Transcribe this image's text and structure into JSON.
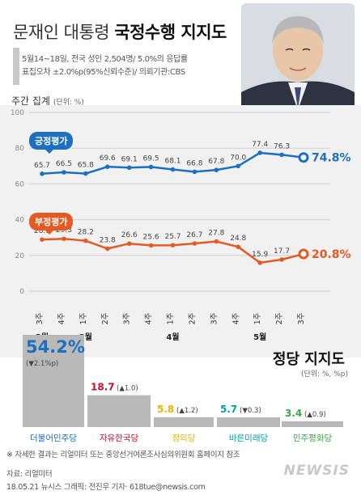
{
  "header": {
    "title_normal": "문재인 대통령 ",
    "title_bold": "국정수행 지지도",
    "subtitle_lines": [
      "5월14~18일, 전국 성인 2,504명/ 5.0%의 응답률",
      "표집오차 ±2.0%p(95%신뢰수준)/ 의뢰기관:CBS"
    ]
  },
  "chart_section": {
    "label": "주간 집계",
    "unit": "(단위: %)"
  },
  "colors": {
    "positive": "#1d6fbf",
    "negative": "#e45a23",
    "bar_gray": "#b9b9b9",
    "red": "#c8102e",
    "yellow": "#e8b400",
    "cyan": "#00a0b0",
    "green": "#3aa845"
  },
  "chart_data": [
    {
      "type": "line",
      "title": "문재인 대통령 국정수행 지지도",
      "ylabel": "(단위: %)",
      "ylim": [
        0,
        100
      ],
      "yticks": [
        "0",
        "20",
        "40",
        "60",
        "80",
        "100"
      ],
      "categories": [
        "3주",
        "4주",
        "1주",
        "2주",
        "3주",
        "4주",
        "1주",
        "2주",
        "3주",
        "4주",
        "1주",
        "2주",
        "3주"
      ],
      "month_labels": [
        {
          "index": 0,
          "label": "2월"
        },
        {
          "index": 2,
          "label": "3월"
        },
        {
          "index": 6,
          "label": "4월"
        },
        {
          "index": 10,
          "label": "5월"
        }
      ],
      "series": [
        {
          "name": "긍정평가",
          "color": "#1d6fbf",
          "values": [
            65.7,
            66.5,
            65.8,
            69.6,
            69.1,
            69.5,
            68.1,
            66.8,
            67.8,
            70.0,
            77.4,
            76.3,
            74.8
          ],
          "labels": [
            "65.7",
            "66.5",
            "65.8",
            "69.6",
            "69.1",
            "69.5",
            "68.1",
            "66.8",
            "67.8",
            "70.0",
            "77.4",
            "76.3",
            "74.8%"
          ]
        },
        {
          "name": "부정평가",
          "color": "#e45a23",
          "values": [
            28.9,
            29.3,
            28.2,
            23.8,
            26.6,
            25.6,
            25.7,
            26.7,
            27.8,
            24.8,
            15.9,
            17.7,
            20.8
          ],
          "labels": [
            "28.9",
            "29.3",
            "28.2",
            "23.8",
            "26.6",
            "25.6",
            "25.7",
            "26.7",
            "27.8",
            "24.8",
            "15.9",
            "17.7",
            "20.8%"
          ]
        }
      ]
    },
    {
      "type": "bar",
      "title": "정당 지지도",
      "ylabel": "(단위: %, %p)",
      "categories": [
        "더불어민주당",
        "자유한국당",
        "정의당",
        "바른미래당",
        "민주평화당"
      ],
      "values": [
        54.2,
        18.7,
        5.8,
        5.7,
        3.4
      ],
      "value_labels": [
        "54.2%",
        "18.7",
        "5.8",
        "5.7",
        "3.4"
      ],
      "change_labels": [
        "(▼2.1%p)",
        "(▲1.0)",
        "(▲1.2)",
        "(▼0.3)",
        "(▲0.9)"
      ],
      "colors": [
        "#1d6fbf",
        "#c8102e",
        "#e8b400",
        "#00a0b0",
        "#3aa845"
      ]
    }
  ],
  "footer": {
    "note": "※ 자세한 결과는 리얼미터 또는 중앙선거여론조사심의위원회 홈페이지 참조",
    "source": "자료: 리얼미터",
    "credit": "18.05.21 뉴시스 그래픽: 전진우 기자· 618tue@newsis.com",
    "logo": "NEWSIS"
  }
}
